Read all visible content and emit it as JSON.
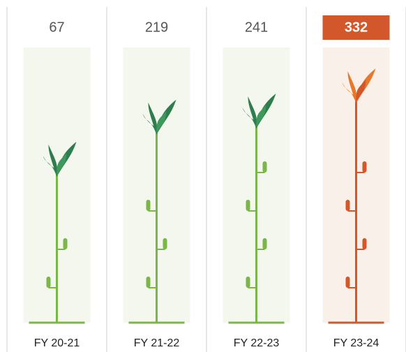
{
  "chart_data": {
    "type": "pictorial",
    "categories": [
      "FY 20-21",
      "FY 21-22",
      "FY 22-23",
      "FY 23-24"
    ],
    "values": [
      67,
      219,
      241,
      332
    ],
    "color": "#7ab648",
    "leaf_color": "#2f7d4e",
    "highlight": 3,
    "highlight_color": "#d2572a",
    "highlight_leaf_color": "#e8782a"
  }
}
